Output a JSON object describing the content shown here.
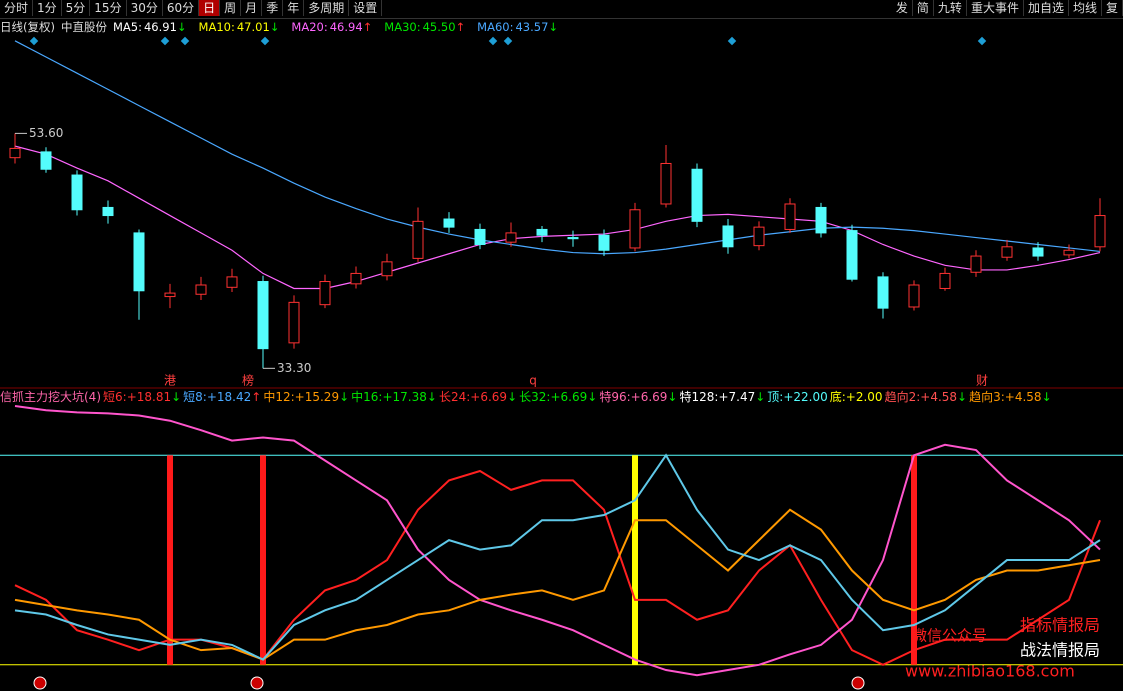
{
  "toolbar": {
    "left": [
      "分时",
      "1分",
      "5分",
      "15分",
      "30分",
      "60分",
      "日",
      "周",
      "月",
      "季",
      "年",
      "多周期",
      "设置"
    ],
    "active": 6,
    "right": [
      "发",
      "简",
      "九转",
      "重大事件",
      "加自选",
      "均线",
      "复"
    ]
  },
  "header": {
    "period": "日线(复权)",
    "stock": "中直股份",
    "ma": [
      {
        "name": "MA5:",
        "label": "46.91",
        "arrow": {
          "text": "↓",
          "color": "#00e600"
        },
        "color": "#ffffff"
      },
      {
        "name": "MA10:",
        "label": "47.01",
        "arrow": {
          "text": "↓",
          "color": "#00e600"
        },
        "color": "#ffff00"
      },
      {
        "name": "MA20:",
        "label": "46.94",
        "arrow": {
          "text": "↑",
          "color": "#ff3030"
        },
        "color": "#ff66ff"
      },
      {
        "name": "MA30:",
        "label": "45.50",
        "arrow": {
          "text": "↑",
          "color": "#ff3030"
        },
        "color": "#00e600"
      },
      {
        "name": "MA60:",
        "label": "43.57",
        "arrow": {
          "text": "↓",
          "color": "#00e600"
        },
        "color": "#4aa8ff"
      }
    ]
  },
  "chart_data": [
    {
      "type": "candlestick",
      "ylim": [
        31.6,
        62.1
      ],
      "up_color": "#ff3232",
      "down_color": "#54fcfc",
      "open": [
        51.5,
        52,
        50,
        47.2,
        45,
        39.5,
        39.7,
        40.3,
        40.8,
        35.5,
        38.8,
        40.6,
        41.3,
        42.8,
        46.2,
        45.3,
        44.2,
        45.3,
        44.6,
        44.8,
        43.7,
        47.5,
        50.5,
        45.6,
        43.9,
        45.3,
        47.2,
        45.2,
        41.2,
        38.6,
        40.2,
        41.6,
        42.9,
        43.7,
        43.1,
        43.8
      ],
      "high": [
        53.6,
        52.4,
        50.4,
        47.8,
        45.3,
        40.6,
        41.2,
        41.9,
        41.3,
        39.6,
        41.4,
        42.1,
        43.2,
        47.2,
        46.8,
        45.8,
        45.9,
        45.6,
        45.2,
        45.3,
        47.6,
        52.6,
        51,
        46.2,
        46,
        48,
        47.6,
        45.7,
        41.6,
        40.9,
        42,
        43.5,
        44.4,
        44.2,
        44,
        48
      ],
      "low": [
        51,
        50.2,
        46.5,
        45.8,
        37.5,
        38.5,
        39.2,
        39.9,
        33.3,
        35,
        38.5,
        40.2,
        40.9,
        42.5,
        45,
        43.6,
        43.8,
        44.2,
        43.8,
        43,
        43.4,
        47.2,
        45.5,
        43.2,
        43.5,
        45,
        44.6,
        40.8,
        37.6,
        38.3,
        40,
        41.2,
        42.6,
        42.6,
        42.8,
        43.4
      ],
      "close": [
        52.3,
        50.5,
        47,
        46.5,
        40,
        39.8,
        40.5,
        41.2,
        35,
        39,
        40.8,
        41.5,
        42.5,
        46,
        45.5,
        44,
        45,
        44.8,
        44.5,
        43.5,
        47,
        51,
        46,
        43.8,
        45.5,
        47.5,
        45,
        41,
        38.5,
        40.5,
        41.5,
        43,
        43.8,
        43,
        43.5,
        46.5
      ],
      "series": [
        {
          "color": "#ff66ff",
          "values": [
            52.5,
            51.8,
            50.6,
            49.5,
            48,
            46.5,
            45,
            43.5,
            41.5,
            40.2,
            40.2,
            40.8,
            41.6,
            42.4,
            43.2,
            44,
            44.5,
            44.7,
            44.8,
            44.9,
            45.3,
            46,
            46.5,
            46.6,
            46.4,
            46.2,
            46,
            45.2,
            44,
            43,
            42.2,
            41.8,
            41.8,
            42.2,
            42.7,
            43.3
          ]
        },
        {
          "color": "#4aa8ff",
          "values": [
            61.6,
            60.2,
            58.8,
            57.4,
            56,
            54.6,
            53.2,
            51.8,
            50.6,
            49.3,
            48.1,
            47.1,
            46.2,
            45.5,
            44.9,
            44.4,
            44,
            43.6,
            43.3,
            43.2,
            43.3,
            43.6,
            44,
            44.4,
            44.8,
            45.1,
            45.4,
            45.5,
            45.4,
            45.2,
            44.9,
            44.6,
            44.3,
            44,
            43.7,
            43.4
          ]
        }
      ],
      "price_labels": [
        {
          "value": 53.6,
          "label": "53.60"
        },
        {
          "value": 33.3,
          "label": "33.30"
        }
      ],
      "annotations": [
        "港",
        "榜",
        "q",
        "财"
      ]
    },
    {
      "type": "line",
      "title": "信抓主力挖大坑(4)",
      "ylim": [
        -0.5,
        26.8
      ],
      "legend": [
        {
          "name": "短6:",
          "label": "+18.81",
          "arrow": {
            "text": "↓",
            "color": "#00e600"
          },
          "color": "#ff3030"
        },
        {
          "name": "短8:",
          "label": "+18.42",
          "arrow": {
            "text": "↑",
            "color": "#ff3030"
          },
          "color": "#4aa8ff"
        },
        {
          "name": "中12:",
          "label": "+15.29",
          "arrow": {
            "text": "↓",
            "color": "#00e600"
          },
          "color": "#ff9900"
        },
        {
          "name": "中16:",
          "label": "+17.38",
          "arrow": {
            "text": "↓",
            "color": "#00e600"
          },
          "color": "#00e600"
        },
        {
          "name": "长24:",
          "label": "+6.69",
          "arrow": {
            "text": "↓",
            "color": "#00e600"
          },
          "color": "#ff3030"
        },
        {
          "name": "长32:",
          "label": "+6.69",
          "arrow": {
            "text": "↓",
            "color": "#00e600"
          },
          "color": "#00e600"
        },
        {
          "name": "特96:",
          "label": "+6.69",
          "arrow": {
            "text": "↓",
            "color": "#00e600"
          },
          "color": "#ff66aa"
        },
        {
          "name": "特128:",
          "label": "+7.47",
          "arrow": {
            "text": "↓",
            "color": "#00e600"
          },
          "color": "#ffffff"
        },
        {
          "name": "顶:",
          "label": "+22.00",
          "arrow": {
            "text": "",
            "color": "#00e600"
          },
          "color": "#54fcfc"
        },
        {
          "name": "底:",
          "label": "+2.00",
          "arrow": {
            "text": "",
            "color": "#00e600"
          },
          "color": "#ffff00"
        },
        {
          "name": "趋向2:",
          "label": "+4.58",
          "arrow": {
            "text": "↓",
            "color": "#00e600"
          },
          "color": "#ff5050"
        },
        {
          "name": "趋向3:",
          "label": "+4.58",
          "arrow": {
            "text": "↓",
            "color": "#00e600"
          },
          "color": "#ff9900"
        }
      ],
      "reference_lines": [
        {
          "value": 22,
          "color": "#54fcfc"
        },
        {
          "value": 2,
          "color": "#ffff00"
        }
      ],
      "buy_signals": [
        5,
        8,
        29
      ],
      "sell_signals": [
        20
      ],
      "buy_color": "#ff1a1a",
      "sell_color": "#ffff00",
      "series": [
        {
          "color": "#ff2020",
          "values": [
            9.6,
            8.2,
            5.3,
            4.4,
            3.4,
            4.4,
            4.4,
            3.6,
            2.5,
            6.3,
            9.1,
            10.1,
            12,
            16.8,
            19.6,
            20.5,
            18.7,
            19.6,
            19.6,
            16.8,
            8.2,
            8.2,
            6.3,
            7.2,
            11,
            13.4,
            8.2,
            3.4,
            2,
            3.4,
            4.4,
            4.4,
            4.4,
            6.3,
            8.2,
            15.8
          ]
        },
        {
          "color": "#ff55cc",
          "values": [
            26.7,
            26.3,
            26.1,
            26,
            25.8,
            25.3,
            24.4,
            23.4,
            23.7,
            23.4,
            21.5,
            19.6,
            17.7,
            13,
            10.1,
            8.2,
            7.2,
            6.3,
            5.3,
            3.9,
            2.5,
            1.5,
            1,
            1.5,
            2,
            3,
            3.9,
            6.3,
            12,
            22,
            23,
            22.5,
            19.6,
            17.7,
            15.8,
            13
          ]
        },
        {
          "color": "#ff9900",
          "values": [
            8.2,
            7.7,
            7.2,
            6.8,
            6.3,
            4.4,
            3.4,
            3.6,
            2.5,
            4.4,
            4.4,
            5.3,
            5.8,
            6.8,
            7.2,
            8.2,
            8.7,
            9.1,
            8.2,
            9.1,
            15.8,
            15.8,
            13.4,
            11,
            13.9,
            16.8,
            14.9,
            11,
            8.2,
            7.2,
            8.2,
            10.1,
            11,
            11,
            11.5,
            12
          ]
        },
        {
          "color": "#5fc8e8",
          "values": [
            7.2,
            6.8,
            5.8,
            4.9,
            4.4,
            3.9,
            4.4,
            3.9,
            2.5,
            5.8,
            7.2,
            8.2,
            10.1,
            12,
            13.9,
            13,
            13.4,
            15.8,
            15.8,
            16.3,
            17.7,
            22,
            16.8,
            13,
            12,
            13.4,
            12,
            8.2,
            5.3,
            5.8,
            7.2,
            9.6,
            12,
            12,
            12,
            13.9
          ]
        }
      ]
    }
  ],
  "watermark": [
    "微信公众号",
    "指标情报局",
    "www.zhibiao168.com",
    "战法情报局"
  ]
}
